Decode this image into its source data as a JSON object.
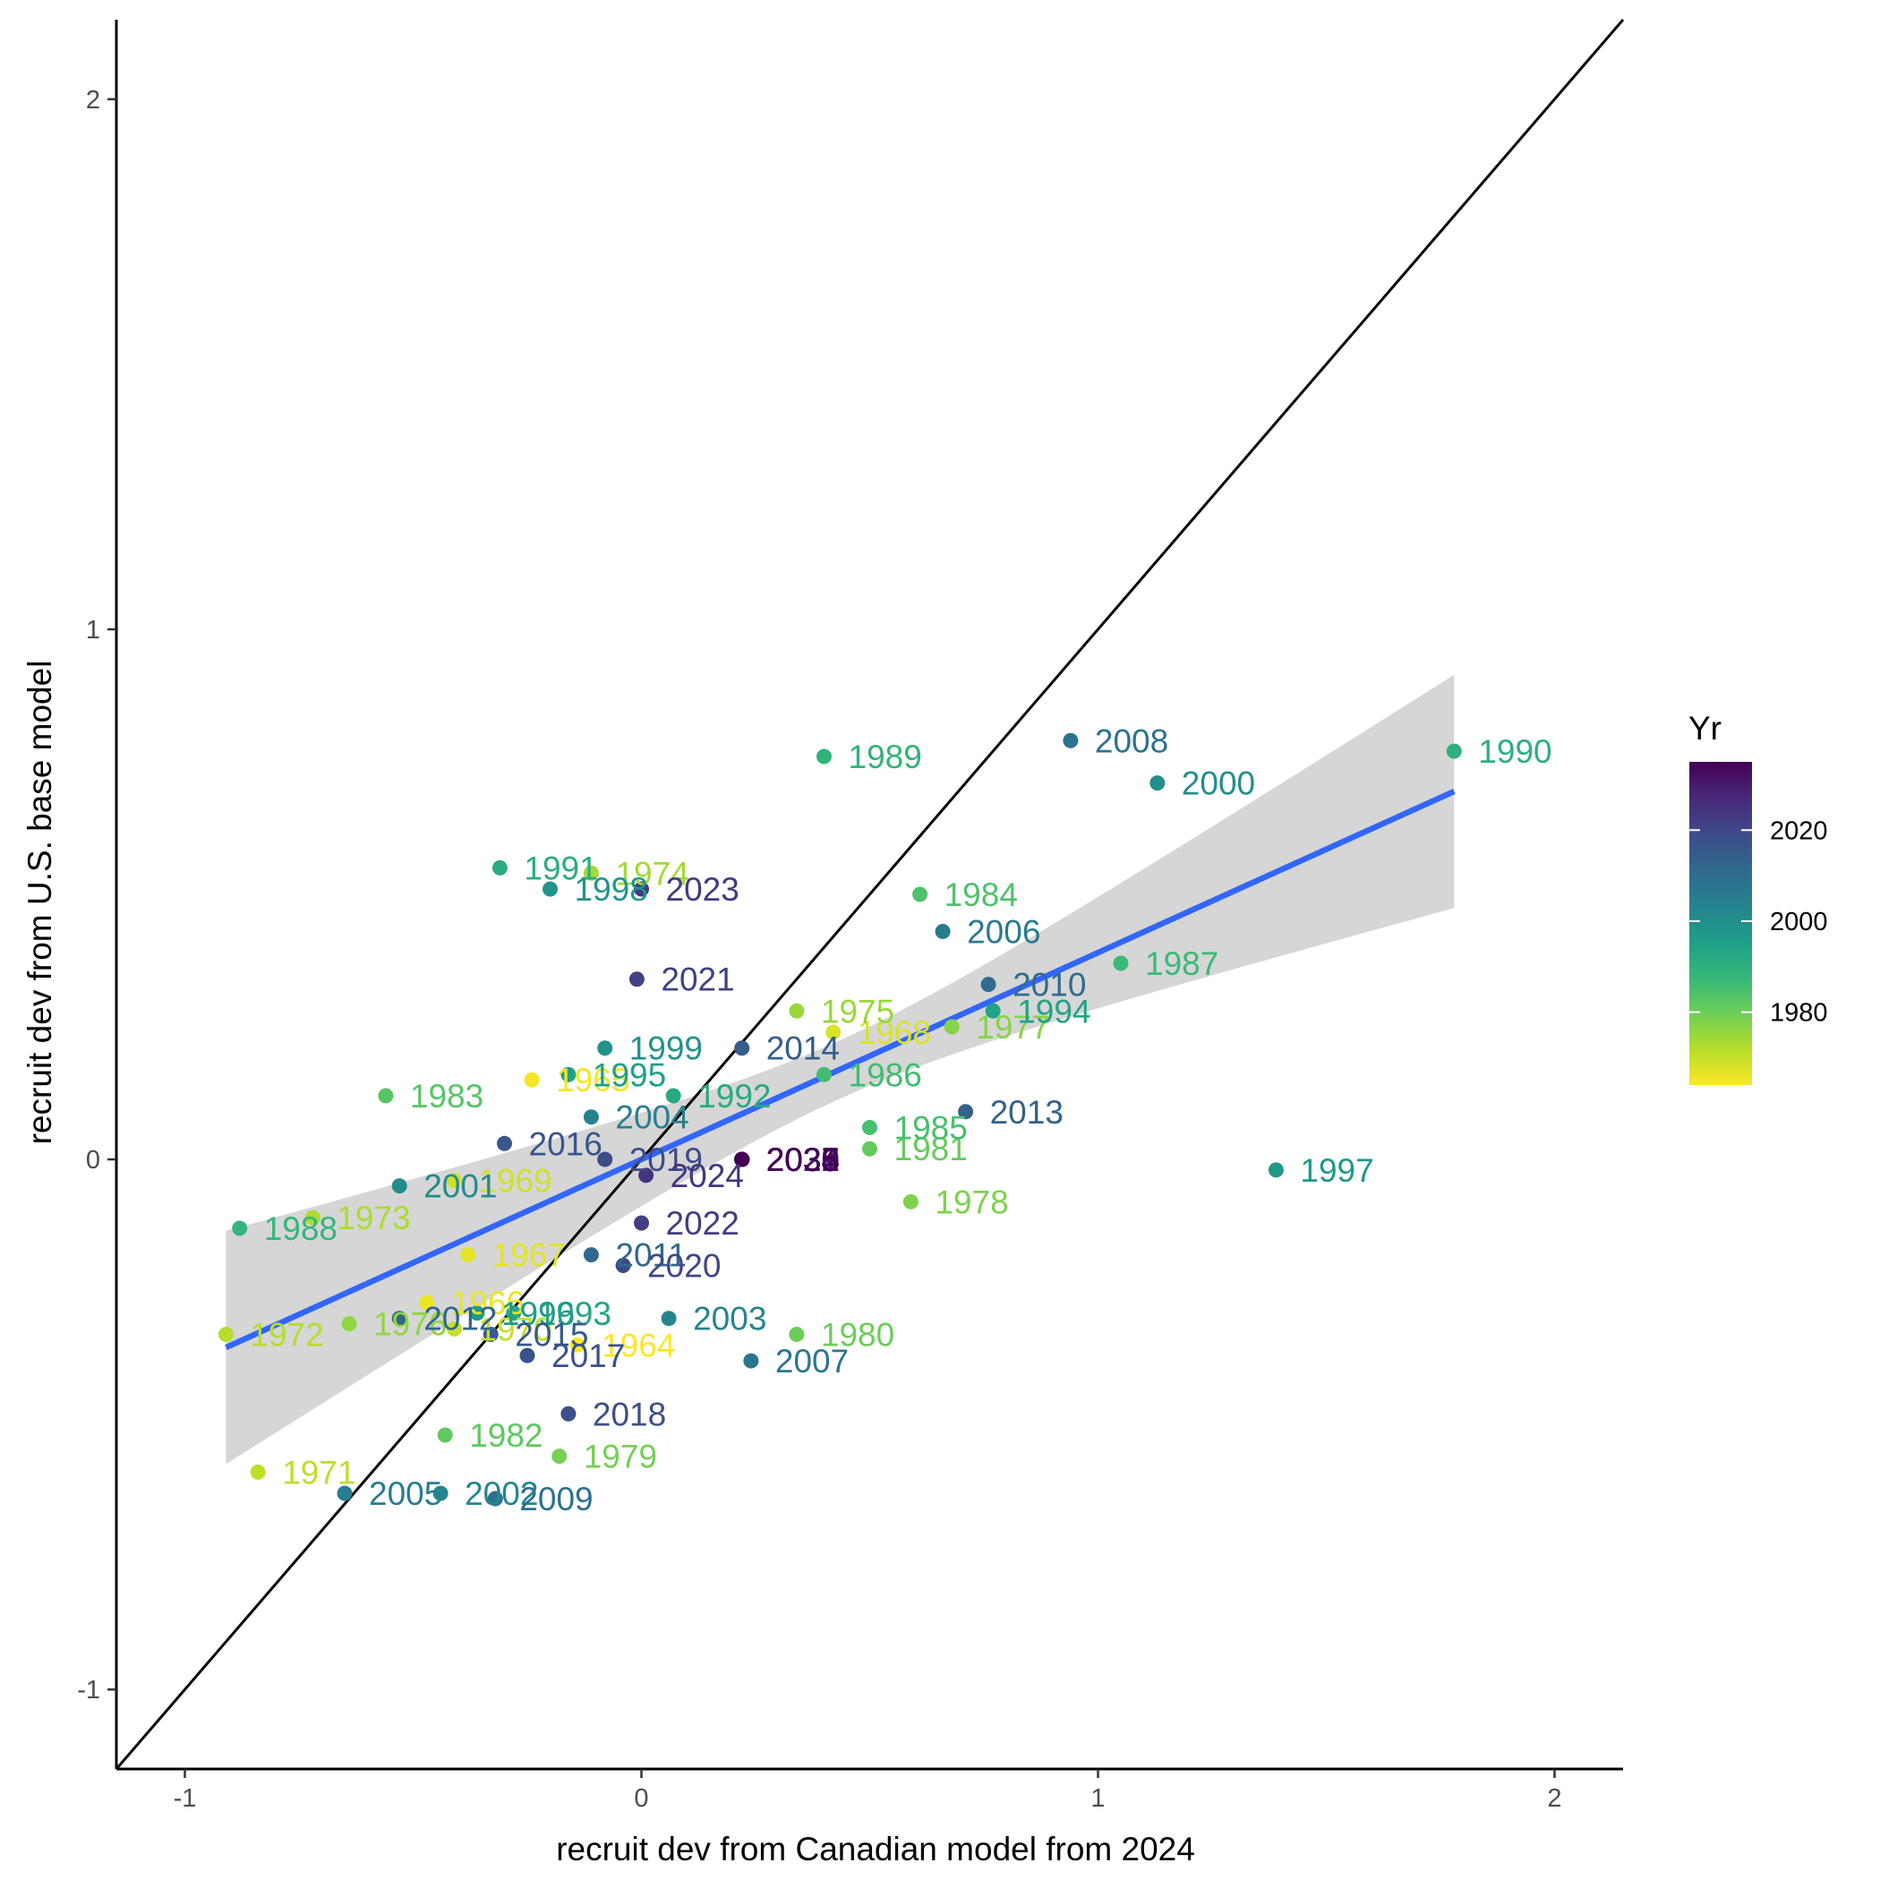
{
  "chart_data": {
    "type": "scatter",
    "xlabel": "recruit dev from Canadian model from 2024",
    "ylabel": "recruit dev from U.S. base model",
    "xlim": [
      -1.15,
      2.15
    ],
    "ylim": [
      -1.15,
      2.15
    ],
    "x_ticks": [
      -1,
      0,
      1,
      2
    ],
    "y_ticks": [
      -1,
      0,
      1,
      2
    ],
    "x_tick_labels": [
      "-1",
      "0",
      "1",
      "2"
    ],
    "y_tick_labels": [
      "-1",
      "0",
      "1",
      "2"
    ],
    "grid": false,
    "reference_line": {
      "type": "identity",
      "slope": 1,
      "intercept": 0
    },
    "fit": {
      "method": "linear regression",
      "color": "#3366FF",
      "confidence_band": true,
      "x_range": [
        -0.91,
        1.78
      ],
      "intercept": 0.0,
      "slope": 0.39,
      "band_halfwidth_at_ends": 0.22
    },
    "legend": {
      "title": "Yr",
      "placement": "right",
      "type": "colorbar",
      "range": [
        1964,
        2035
      ],
      "ticks": [
        1980,
        2000,
        2020
      ],
      "tick_labels": [
        "1980",
        "2000",
        "2020"
      ],
      "palette": "viridis-reversed"
    },
    "points": [
      {
        "label": "1964",
        "year": 1964,
        "x": -0.14,
        "y": -0.35
      },
      {
        "label": "1965",
        "year": 1965,
        "x": -0.24,
        "y": 0.15
      },
      {
        "label": "1966",
        "year": 1966,
        "x": -0.47,
        "y": -0.27
      },
      {
        "label": "1967",
        "year": 1967,
        "x": -0.38,
        "y": -0.18
      },
      {
        "label": "1968",
        "year": 1968,
        "x": 0.42,
        "y": 0.24
      },
      {
        "label": "1969",
        "year": 1969,
        "x": -0.41,
        "y": -0.04
      },
      {
        "label": "1970",
        "year": 1970,
        "x": -0.41,
        "y": -0.32
      },
      {
        "label": "1971",
        "year": 1971,
        "x": -0.84,
        "y": -0.59
      },
      {
        "label": "1972",
        "year": 1972,
        "x": -0.91,
        "y": -0.33
      },
      {
        "label": "1973",
        "year": 1973,
        "x": -0.72,
        "y": -0.11
      },
      {
        "label": "1974",
        "year": 1974,
        "x": -0.11,
        "y": 0.54
      },
      {
        "label": "1975",
        "year": 1975,
        "x": 0.34,
        "y": 0.28
      },
      {
        "label": "1976",
        "year": 1976,
        "x": -0.64,
        "y": -0.31
      },
      {
        "label": "1977",
        "year": 1977,
        "x": 0.68,
        "y": 0.25
      },
      {
        "label": "1978",
        "year": 1978,
        "x": 0.59,
        "y": -0.08
      },
      {
        "label": "1979",
        "year": 1979,
        "x": -0.18,
        "y": -0.56
      },
      {
        "label": "1980",
        "year": 1980,
        "x": 0.34,
        "y": -0.33
      },
      {
        "label": "1981",
        "year": 1981,
        "x": 0.5,
        "y": 0.02
      },
      {
        "label": "1982",
        "year": 1982,
        "x": -0.43,
        "y": -0.52
      },
      {
        "label": "1983",
        "year": 1983,
        "x": -0.56,
        "y": 0.12
      },
      {
        "label": "1984",
        "year": 1984,
        "x": 0.61,
        "y": 0.5
      },
      {
        "label": "1985",
        "year": 1985,
        "x": 0.5,
        "y": 0.06
      },
      {
        "label": "1986",
        "year": 1986,
        "x": 0.4,
        "y": 0.16
      },
      {
        "label": "1987",
        "year": 1987,
        "x": 1.05,
        "y": 0.37
      },
      {
        "label": "1988",
        "year": 1988,
        "x": -0.88,
        "y": -0.13
      },
      {
        "label": "1989",
        "year": 1989,
        "x": 0.4,
        "y": 0.76
      },
      {
        "label": "1990",
        "year": 1990,
        "x": 1.78,
        "y": 0.77
      },
      {
        "label": "1991",
        "year": 1991,
        "x": -0.31,
        "y": 0.55
      },
      {
        "label": "1992",
        "year": 1992,
        "x": 0.07,
        "y": 0.12
      },
      {
        "label": "1993",
        "year": 1993,
        "x": -0.28,
        "y": -0.29
      },
      {
        "label": "1994",
        "year": 1994,
        "x": 0.77,
        "y": 0.28
      },
      {
        "label": "1995",
        "year": 1995,
        "x": -0.16,
        "y": 0.16
      },
      {
        "label": "1996",
        "year": 1996,
        "x": -0.36,
        "y": -0.29
      },
      {
        "label": "1997",
        "year": 1997,
        "x": 1.39,
        "y": -0.02
      },
      {
        "label": "1998",
        "year": 1998,
        "x": -0.2,
        "y": 0.51
      },
      {
        "label": "1999",
        "year": 1999,
        "x": -0.08,
        "y": 0.21
      },
      {
        "label": "2000",
        "year": 2000,
        "x": 1.13,
        "y": 0.71
      },
      {
        "label": "2001",
        "year": 2001,
        "x": -0.53,
        "y": -0.05
      },
      {
        "label": "2002",
        "year": 2002,
        "x": -0.44,
        "y": -0.63
      },
      {
        "label": "2003",
        "year": 2003,
        "x": 0.06,
        "y": -0.3
      },
      {
        "label": "2004",
        "year": 2004,
        "x": -0.11,
        "y": 0.08
      },
      {
        "label": "2005",
        "year": 2005,
        "x": -0.65,
        "y": -0.63
      },
      {
        "label": "2006",
        "year": 2006,
        "x": 0.66,
        "y": 0.43
      },
      {
        "label": "2007",
        "year": 2007,
        "x": 0.24,
        "y": -0.38
      },
      {
        "label": "2008",
        "year": 2008,
        "x": 0.94,
        "y": 0.79
      },
      {
        "label": "2009",
        "year": 2009,
        "x": -0.32,
        "y": -0.64
      },
      {
        "label": "2010",
        "year": 2010,
        "x": 0.76,
        "y": 0.33
      },
      {
        "label": "2011",
        "year": 2011,
        "x": -0.11,
        "y": -0.18
      },
      {
        "label": "2012",
        "year": 2012,
        "x": -0.53,
        "y": -0.3
      },
      {
        "label": "2013",
        "year": 2013,
        "x": 0.71,
        "y": 0.09
      },
      {
        "label": "2014",
        "year": 2014,
        "x": 0.22,
        "y": 0.21
      },
      {
        "label": "2015",
        "year": 2015,
        "x": -0.33,
        "y": -0.33
      },
      {
        "label": "2016",
        "year": 2016,
        "x": -0.3,
        "y": 0.03
      },
      {
        "label": "2017",
        "year": 2017,
        "x": -0.25,
        "y": -0.37
      },
      {
        "label": "2018",
        "year": 2018,
        "x": -0.16,
        "y": -0.48
      },
      {
        "label": "2019",
        "year": 2019,
        "x": -0.08,
        "y": 0.0
      },
      {
        "label": "2020",
        "year": 2020,
        "x": -0.04,
        "y": -0.2
      },
      {
        "label": "2021",
        "year": 2021,
        "x": -0.01,
        "y": 0.34
      },
      {
        "label": "2022",
        "year": 2022,
        "x": 0.0,
        "y": -0.12
      },
      {
        "label": "2023",
        "year": 2023,
        "x": 0.0,
        "y": 0.51
      },
      {
        "label": "2024",
        "year": 2024,
        "x": 0.01,
        "y": -0.03
      },
      {
        "label": "2025",
        "year": 2025,
        "x": 0.22,
        "y": 0.0
      },
      {
        "label": "2026",
        "year": 2026,
        "x": 0.22,
        "y": 0.0
      },
      {
        "label": "2027",
        "year": 2027,
        "x": 0.22,
        "y": 0.0
      },
      {
        "label": "2028",
        "year": 2028,
        "x": 0.22,
        "y": 0.0
      },
      {
        "label": "2029",
        "year": 2029,
        "x": 0.22,
        "y": 0.0
      },
      {
        "label": "2030",
        "year": 2030,
        "x": 0.22,
        "y": 0.0
      },
      {
        "label": "2031",
        "year": 2031,
        "x": 0.22,
        "y": 0.0
      },
      {
        "label": "2032",
        "year": 2032,
        "x": 0.22,
        "y": 0.0
      },
      {
        "label": "2033",
        "year": 2033,
        "x": 0.22,
        "y": 0.0
      },
      {
        "label": "2034",
        "year": 2034,
        "x": 0.22,
        "y": 0.0
      },
      {
        "label": "2035",
        "year": 2035,
        "x": 0.22,
        "y": 0.0
      }
    ]
  }
}
